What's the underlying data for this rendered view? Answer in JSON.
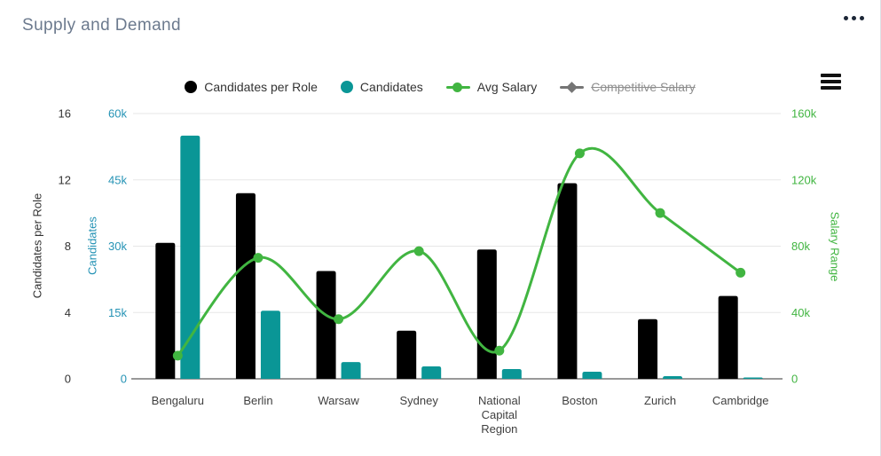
{
  "header": {
    "title": "Supply and Demand"
  },
  "icons": {
    "more_options": "ellipsis-horizontal",
    "chart_menu": "hamburger-menu"
  },
  "colors": {
    "title": "#6c7a8e",
    "bar_black": "#000000",
    "bar_teal": "#0a9696",
    "line_green": "#41b541",
    "candidates_axis": "#2593b5",
    "disabled_gray": "#8f8f8f",
    "grid": "#e7e7e7",
    "axis_line": "#999999"
  },
  "legend": {
    "items": [
      {
        "label": "Candidates per Role",
        "marker": "circle",
        "color": "#000000",
        "disabled": false
      },
      {
        "label": "Candidates",
        "marker": "circle",
        "color": "#0a9696",
        "disabled": false
      },
      {
        "label": "Avg Salary",
        "marker": "line-dot",
        "color": "#41b541",
        "disabled": false
      },
      {
        "label": "Competitive Salary",
        "marker": "line-diamond",
        "color": "#757575",
        "disabled": true
      }
    ]
  },
  "chart_data": {
    "type": "combo-bar-line",
    "categories": [
      "Bengaluru",
      "Berlin",
      "Warsaw",
      "Sydney",
      "National Capital Region",
      "Boston",
      "Zurich",
      "Cambridge"
    ],
    "series": [
      {
        "name": "Candidates per Role",
        "type": "bar",
        "axis": "y1",
        "color": "#000000",
        "values": [
          8.2,
          11.2,
          6.5,
          2.9,
          7.8,
          11.8,
          3.6,
          5.0
        ]
      },
      {
        "name": "Candidates",
        "type": "bar",
        "axis": "y2",
        "color": "#0a9696",
        "values": [
          55000,
          15400,
          3800,
          2800,
          2200,
          1600,
          600,
          300
        ]
      },
      {
        "name": "Avg Salary",
        "type": "line",
        "axis": "y3",
        "color": "#41b541",
        "values": [
          14000,
          73000,
          36000,
          77000,
          17000,
          136000,
          100000,
          64000
        ]
      },
      {
        "name": "Competitive Salary",
        "type": "line",
        "axis": "y3",
        "color": "#757575",
        "hidden": true,
        "values": []
      }
    ],
    "axes": {
      "y1": {
        "title": "Candidates per Role",
        "min": 0,
        "max": 16,
        "ticks": [
          "0",
          "4",
          "8",
          "12",
          "16"
        ],
        "color": "#333333"
      },
      "y2": {
        "title": "Candidates",
        "min": 0,
        "max": 60000,
        "ticks": [
          "0",
          "15k",
          "30k",
          "45k",
          "60k"
        ],
        "color": "#2593b5"
      },
      "y3": {
        "title": "Salary Range",
        "min": 0,
        "max": 160000,
        "ticks": [
          "0",
          "40k",
          "80k",
          "120k",
          "160k"
        ],
        "color": "#41b541"
      }
    },
    "grid": true,
    "legend_position": "top"
  }
}
